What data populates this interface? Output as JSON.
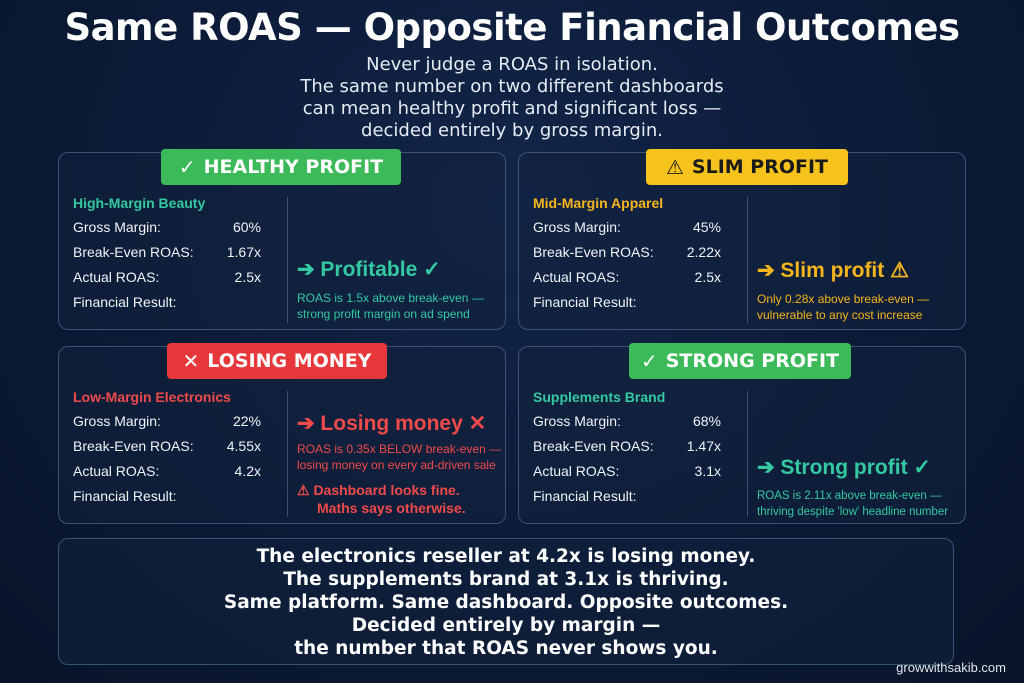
{
  "title": "Same ROAS — Opposite Financial Outcomes",
  "subtitle": [
    "Never judge a ROAS in isolation.",
    "The same number on two different dashboards",
    "can mean healthy profit and significant loss —",
    "decided entirely by gross margin."
  ],
  "colors": {
    "green": "#3cba5a",
    "yellow": "#f6c21c",
    "red": "#e6383a",
    "teal": "#34c9a0",
    "orange": "#f5b51c",
    "border": "#3d5273"
  },
  "labels": {
    "gross_margin": "Gross Margin:",
    "break_even": "Break-Even ROAS:",
    "actual": "Actual ROAS:",
    "result": "Financial Result:"
  },
  "cards": [
    {
      "badge_icon": "✓",
      "badge_text": "HEALTHY PROFIT",
      "name": "High-Margin Beauty",
      "gross_margin": "60%",
      "break_even": "1.67x",
      "actual": "2.5x",
      "result_text": "➔ Profitable ✓",
      "note": [
        "ROAS is 1.5x above break-even —",
        "strong profit margin on ad spend"
      ]
    },
    {
      "badge_icon": "⚠",
      "badge_text": "SLIM PROFIT",
      "name": "Mid-Margin Apparel",
      "gross_margin": "45%",
      "break_even": "2.22x",
      "actual": "2.5x",
      "result_text": "➔ Slim profit ⚠",
      "note": [
        "Only 0.28x above break-even —",
        "vulnerable to any cost increase"
      ]
    },
    {
      "badge_icon": "✕",
      "badge_text": "LOSING MONEY",
      "name": "Low-Margin Electronics",
      "gross_margin": "22%",
      "break_even": "4.55x",
      "actual": "4.2x",
      "result_text": "➔ Losing money ✕",
      "note": [
        "ROAS is 0.35x BELOW break-even —",
        "losing money on every ad-driven sale"
      ],
      "warning": [
        "⚠ Dashboard looks fine.",
        "Maths says otherwise."
      ]
    },
    {
      "badge_icon": "✓",
      "badge_text": "STRONG PROFIT",
      "name": "Supplements Brand",
      "gross_margin": "68%",
      "break_even": "1.47x",
      "actual": "3.1x",
      "result_text": "➔ Strong profit ✓",
      "note": [
        "ROAS is 2.11x above break-even —",
        "thriving despite 'low' headline number"
      ]
    }
  ],
  "bottom": [
    "The electronics reseller at 4.2x is losing money.",
    "The supplements brand at 3.1x is thriving.",
    "Same platform. Same dashboard. Opposite outcomes.",
    "Decided entirely by margin —",
    "the number that ROAS never shows you."
  ],
  "credit": "growwithsakib.com"
}
